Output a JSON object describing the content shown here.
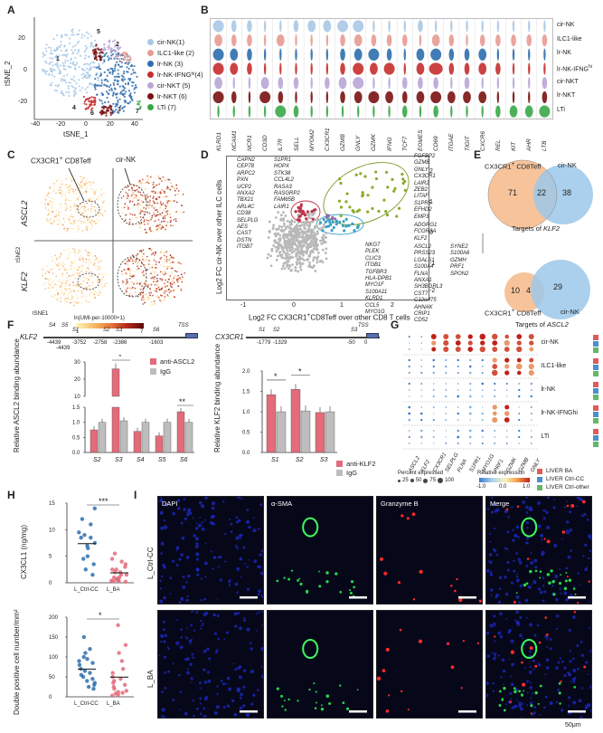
{
  "panels": {
    "A": "A",
    "B": "B",
    "C": "C",
    "D": "D",
    "E": "E",
    "F": "F",
    "G": "G",
    "H": "H",
    "I": "I"
  },
  "panel_a": {
    "xlabel": "tSNE_1",
    "ylabel": "tSNE_2",
    "xticks": [
      "-40",
      "-20",
      "0",
      "20",
      "40"
    ],
    "yticks": [
      "-20",
      "0",
      "20"
    ],
    "clusters": [
      {
        "label": "cir-NK(1)",
        "color": "#a8c8e6"
      },
      {
        "label": "ILC1-like (2)",
        "color": "#e89a94"
      },
      {
        "label": "lr-NK (3)",
        "color": "#2e6ead"
      },
      {
        "label": "lr-NK-IFNG",
        "sup": "hi",
        "suffix": " (4)",
        "color": "#c62d2d"
      },
      {
        "label": "cir-NKT (5)",
        "color": "#b9a6d6"
      },
      {
        "label": "lr-NKT (6)",
        "color": "#7a1212"
      },
      {
        "label": "LTi (7)",
        "color": "#3aa84a"
      }
    ],
    "cluster_numbers": [
      "1",
      "2",
      "3",
      "4",
      "5",
      "6",
      "7"
    ]
  },
  "panel_b": {
    "genes": [
      "KLRD1",
      "NCAM1",
      "NCR1",
      "CD3D",
      "IL7R",
      "SELL",
      "MYOM2",
      "CX3CR1",
      "GZMB",
      "GNLY",
      "GZMK",
      "IFNG",
      "TCF7",
      "EOMES",
      "CD69",
      "ITGAE",
      "TIGIT",
      "CXCR6",
      "REL",
      "KIT",
      "AHR",
      "LTB"
    ],
    "rows": [
      {
        "label": "cir-NK",
        "color": "#a8c8e6"
      },
      {
        "label": "ILC1-like",
        "color": "#e89a94"
      },
      {
        "label": "lr-NK",
        "color": "#2e6ead"
      },
      {
        "label": "lr-NK-IFNG",
        "sup": "hi",
        "color": "#c62d2d"
      },
      {
        "label": "cir-NKT",
        "color": "#b9a6d6"
      },
      {
        "label": "lr-NKT",
        "color": "#7a1212"
      },
      {
        "label": "LTi",
        "color": "#3aa84a"
      }
    ]
  },
  "panel_c": {
    "label_cd8": "CX3CR1",
    "label_cd8_sup": "+",
    "label_cd8_rest": " CD8Teff",
    "label_cirnk": "cir-NK",
    "row1": "ASCL2",
    "row2": "KLF2",
    "ylab": "tSNE2",
    "xlab": "tSNE1",
    "scale_title": "ln(UMI-per-10000+1)",
    "scale_min": "1",
    "scale_max": "7"
  },
  "panel_d": {
    "xlabel": "Log2 FC CX3CR1",
    "xlabel_sup": "+",
    "xlabel_rest": "CD8Teff over other CD8 T cells",
    "ylabel": "Log2 FC cir-NK over other ILC cells",
    "xticks": [
      "-1",
      "0",
      "1",
      "2"
    ],
    "yticks": [
      "-2",
      "-1",
      "0",
      "1",
      "2"
    ],
    "list_red_a": [
      "CAPN2",
      "CEP78",
      "ARPC2",
      "PXN",
      "UCP2",
      "ANXA2",
      "TBX21",
      "ARL4C",
      "CD38",
      "SELPLG",
      "AES",
      "CAST",
      "DSTN",
      "ITGB7"
    ],
    "list_red_b": [
      "S1PR1",
      "HOPX",
      "STK38",
      "CCL4L2",
      "RASA3",
      "RASGRP2",
      "FAM65B",
      "LAIR1"
    ],
    "list_green": [
      "FGFBP2",
      "GZMB",
      "GNLY",
      "CX3CR1",
      "LAIR2",
      "ZEB2",
      "LITAF",
      "S1PR5",
      "EFHD2",
      "EMP3"
    ],
    "list_mid": [
      "ADGRG1",
      "FCGR3A",
      "KLF2"
    ],
    "list_blue_a": [
      "NKG7",
      "PLEK",
      "CLIC3",
      "ITGB1",
      "TGFBR3",
      "HLA-DPB1",
      "MYO1F",
      "S100A11",
      "KLRD1",
      "CCL5",
      "MYO1G"
    ],
    "list_blue_b": [
      "ASCL2",
      "PRSS23",
      "LGALS1",
      "S100A4",
      "FLNA",
      "ANXA1",
      "SH3BGRL3",
      "CST7",
      "C12orf75",
      "AHNAK",
      "CRIP1",
      "CD52"
    ],
    "list_blue_c": [
      "SYNE2",
      "S100A6",
      "GZMH",
      "PRF1",
      "SPON2"
    ]
  },
  "panel_e": {
    "top_left": "CX3CR1",
    "top_left_sup": "+",
    "top_left_rest": " CD8Teff",
    "top_right": "cir-NK",
    "top_counts": [
      "71",
      "22",
      "38"
    ],
    "top_caption": "Targets of ",
    "top_caption_gene": "KLF2",
    "bottom_left": "CX3CR1",
    "bottom_left_sup": "+",
    "bottom_left_rest": " CD8Teff",
    "bottom_right": "cir-NK",
    "bottom_counts": [
      "10",
      "4",
      "29"
    ],
    "bottom_caption": "Targets of ",
    "bottom_caption_gene": "ASCL2"
  },
  "panel_f": {
    "klf2_gene": "KLF2",
    "klf2_sites": [
      "S4",
      "S5",
      "S1",
      "S2",
      "S3",
      "S6",
      "TSS"
    ],
    "klf2_pos": [
      "-4439",
      "-4439",
      "-3752",
      "-2758",
      "-2386",
      "-1603"
    ],
    "cx3cr1_gene": "CX3CR1",
    "cx3cr1_sites": [
      "S1",
      "S2",
      "S3",
      "TSS"
    ],
    "cx3cr1_pos": [
      "-1779",
      "-1329",
      "-50",
      "0"
    ],
    "left_ylabel": "Relative ASCL2 binding abundance",
    "left_yticks": [
      "0.0",
      "0.5",
      "1.0",
      "1.5",
      "10",
      "20",
      "30"
    ],
    "left_legend": [
      "anti-ASCL2",
      "IgG"
    ],
    "left_cats": [
      "S2",
      "S3",
      "S4",
      "S5",
      "S6"
    ],
    "left_sig": [
      "*",
      "**"
    ],
    "right_ylabel": "Relative KLF2 binding abundance",
    "right_yticks": [
      "0.0",
      "0.5",
      "1.0",
      "1.5",
      "2.0"
    ],
    "right_legend": [
      "anti-KLF2",
      "IgG"
    ],
    "right_cats": [
      "S1",
      "S2",
      "S3"
    ],
    "right_sig": [
      "*",
      "*"
    ]
  },
  "panel_g": {
    "rows": [
      "cir-NK",
      "ILC1-like",
      "lr-NK",
      "lr-NK-IFNGhi",
      "LTi"
    ],
    "genes": [
      "ASCL2",
      "KLF2",
      "CX3CR1",
      "SELPLG",
      "FLNA",
      "S1PR1",
      "MYO1G",
      "PRF1",
      "GZMK",
      "GZMB",
      "GNLY"
    ],
    "pct_title": "Percent expressed",
    "pct_values": [
      "25",
      "50",
      "75",
      "100"
    ],
    "expr_title": "Relative expression",
    "expr_ticks": [
      "-1.0",
      "0.0",
      "1.0"
    ],
    "sources": [
      {
        "label": "LIVER BA",
        "color": "#e05a5a"
      },
      {
        "label": "LIVER Ctrl-CC",
        "color": "#4a8fd0"
      },
      {
        "label": "LIVER Ctrl-other",
        "color": "#62b86a"
      }
    ]
  },
  "panel_h": {
    "top_ylabel": "CX3CL1 (ng/mg)",
    "top_yticks": [
      "0",
      "5",
      "10",
      "15"
    ],
    "top_sig": "***",
    "bottom_ylabel": "Double positive cell number/mm²",
    "bottom_yticks": [
      "0",
      "50",
      "100",
      "150",
      "200"
    ],
    "bottom_sig": "*",
    "groups": [
      "L_Ctrl-CC",
      "L_BA"
    ]
  },
  "panel_i": {
    "cols": [
      "DAPI",
      "α-SMA",
      "Granzyme B",
      "Merge"
    ],
    "rows": [
      "L_Ctrl-CC",
      "L_BA"
    ],
    "scale": "50μm"
  },
  "chart_data": [
    {
      "type": "bar",
      "title": "",
      "ylabel": "Relative ASCL2 binding abundance",
      "categories": [
        "S2",
        "S3",
        "S4",
        "S5",
        "S6"
      ],
      "series": [
        {
          "name": "anti-ASCL2",
          "values": [
            0.75,
            26,
            0.7,
            0.55,
            1.35
          ]
        },
        {
          "name": "IgG",
          "values": [
            1.0,
            1.05,
            1.0,
            1.0,
            1.0
          ]
        }
      ]
    },
    {
      "type": "bar",
      "title": "",
      "ylabel": "Relative KLF2 binding abundance",
      "categories": [
        "S1",
        "S2",
        "S3"
      ],
      "series": [
        {
          "name": "anti-KLF2",
          "values": [
            1.42,
            1.55,
            0.98
          ]
        },
        {
          "name": "IgG",
          "values": [
            1.0,
            1.02,
            1.0
          ]
        }
      ],
      "ylim": [
        0,
        2
      ]
    },
    {
      "type": "scatter",
      "title": "",
      "ylabel": "CX3CL1 (ng/mg)",
      "categories": [
        "L_Ctrl-CC",
        "L_BA"
      ],
      "series": [
        {
          "name": "L_Ctrl-CC",
          "values": [
            14,
            12,
            11,
            9.5,
            9,
            8.5,
            8.5,
            7.5,
            7,
            6.5,
            5,
            4.5,
            3.5,
            2.5,
            1.5
          ]
        },
        {
          "name": "L_BA",
          "values": [
            5.5,
            4.5,
            4,
            3.5,
            3,
            2.5,
            2.5,
            2,
            2,
            1.5,
            1.5,
            1,
            1,
            0.8,
            0.6,
            0.5,
            0.4,
            0.3,
            0.3,
            0.2
          ]
        }
      ],
      "ylim": [
        0,
        15
      ]
    },
    {
      "type": "scatter",
      "title": "",
      "ylabel": "Double positive cell number/mm²",
      "categories": [
        "L_Ctrl-CC",
        "L_BA"
      ],
      "series": [
        {
          "name": "L_Ctrl-CC",
          "values": [
            150,
            120,
            110,
            100,
            95,
            90,
            85,
            80,
            70,
            65,
            60,
            55,
            50,
            45,
            40,
            35,
            30,
            25,
            20
          ]
        },
        {
          "name": "L_BA",
          "values": [
            180,
            130,
            110,
            90,
            70,
            60,
            50,
            45,
            40,
            35,
            30,
            25,
            20,
            15,
            12,
            10,
            8,
            5,
            3
          ]
        }
      ],
      "ylim": [
        0,
        200
      ]
    }
  ]
}
